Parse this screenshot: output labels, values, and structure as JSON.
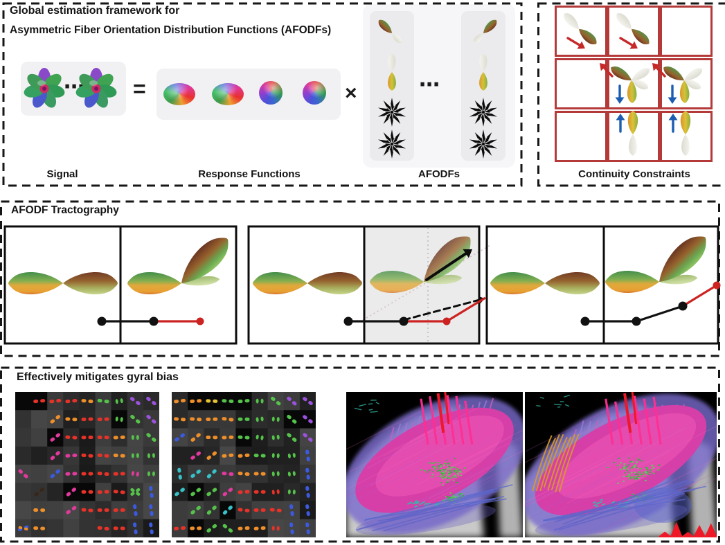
{
  "figure": {
    "framework": {
      "title_line1": "Global estimation framework for",
      "title_line2": "Asymmetric Fiber Orientation Distribution Functions (AFODFs)",
      "equals_sign": "=",
      "times_sign": "×",
      "dots": "⋯",
      "label_signal": "Signal",
      "label_response_functions": "Response Functions",
      "label_afodfs": "AFODFs"
    },
    "continuity": {
      "label": "Continuity Constraints"
    },
    "tractography": {
      "title": "AFODF Tractography"
    },
    "gyral_bias": {
      "title": "Effectively mitigates gyral bias"
    }
  },
  "colors": {
    "panel_border": "#161616",
    "grid_red": "#b43a3a",
    "arrow_red": "#c62828",
    "arrow_blue": "#1d5cb0",
    "path_black": "#111111",
    "path_red": "#cc2222",
    "box_bg": "#f1f1f3",
    "shaded_box_bg": "#ebebeb",
    "star_black": "#0b0b0b",
    "lobe_green": "#37874a",
    "lobe_orange": "#e8a032",
    "lobe_maroon": "#6b3322",
    "lobe_light_green": "#cfe49c",
    "tract_magenta": "#d63fa8",
    "tract_purple": "#7a6cce",
    "tract_green": "#3ec83e",
    "tract_pink": "#ff2f92",
    "tract_blue": "#5b67cc",
    "tract_yellow": "#d89b28",
    "tract_red": "#ee1826"
  },
  "glyph_field": {
    "legend": {
      "r": "#e83228",
      "o": "#ef8f2a",
      "y": "#e5c332",
      "m": "#e2399d",
      "p": "#9b52dc",
      "g": "#55c34a",
      "b": "#3b5ae0",
      "c": "#35c2c8",
      "k": "#3a2618"
    },
    "left_rows": [
      [
        "",
        "r-",
        "r-",
        "r-",
        "o-",
        "g-",
        "g.",
        "p\\",
        "p\\"
      ],
      [
        "",
        "",
        "o/",
        "o-",
        "r-",
        "r-",
        "g.",
        "g\\",
        "p\\"
      ],
      [
        "",
        "",
        "m/",
        "r-",
        "r-",
        "r-",
        "o-",
        "g.",
        "g\\"
      ],
      [
        "",
        "",
        "m/",
        "m-",
        "r-",
        "r-",
        "o-",
        "g.",
        "g."
      ],
      [
        "m\\",
        "",
        "b/",
        "m-",
        "r-",
        "r-",
        "r-",
        "m.",
        "g."
      ],
      [
        "",
        "k/",
        "",
        "m/",
        "r-",
        "r-",
        "r-",
        "gx",
        "b|"
      ],
      [
        "",
        "o-",
        "",
        "m/",
        "r-",
        "r-",
        "r-",
        "b|",
        "b|"
      ],
      [
        "bx",
        "o-",
        "",
        "",
        "",
        "r-",
        "r-",
        "b|",
        "b|"
      ]
    ],
    "right_rows": [
      [
        "o-",
        "o-",
        "y-",
        "g-",
        "g-",
        "g.",
        "g\\",
        "p\\",
        "p\\"
      ],
      [
        "o-",
        "o-",
        "o-",
        "o-",
        "g-",
        "g.",
        "g.",
        "g\\",
        "p\\"
      ],
      [
        "b/",
        "o/",
        "o-",
        "o-",
        "g-",
        "g.",
        "g.",
        "g\\",
        "p\\"
      ],
      [
        "",
        "m/",
        "o/",
        "o-",
        "o-",
        "g-",
        "g.",
        "g.",
        "b|"
      ],
      [
        "c|",
        "c/",
        "c/",
        "m-",
        "o-",
        "o-",
        "g.",
        "g.",
        "b|"
      ],
      [
        "c/",
        "g/",
        "g/",
        "m/",
        "r-",
        "r-",
        "r.",
        "g.",
        "b|"
      ],
      [
        "",
        "g/",
        "g/",
        "c/",
        "r-",
        "r-",
        "r-",
        "b|",
        "b|"
      ],
      [
        "r-",
        "o-",
        "g/",
        "g\\",
        "o-",
        "o-",
        "r.",
        "b|",
        "b|"
      ]
    ]
  },
  "tract_views": {
    "left": {
      "teal_marks_top_left": true,
      "yellow_fibers_left": false,
      "red_base_bottom_right": false
    },
    "right": {
      "teal_marks_top_left": true,
      "yellow_fibers_left": true,
      "red_base_bottom_right": true
    }
  }
}
